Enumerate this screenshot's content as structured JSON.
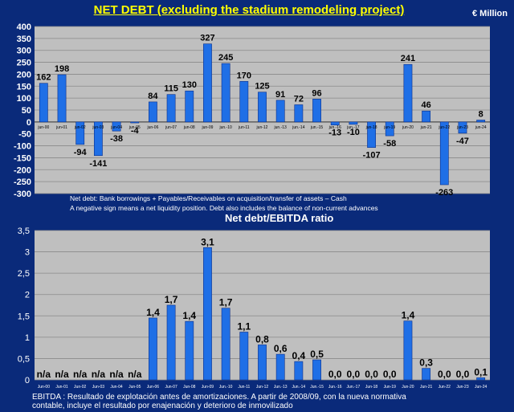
{
  "header": {
    "title": "NET DEBT (excluding the stadium remodeling project)",
    "unit": "€ Million"
  },
  "notes": {
    "line1": "Net debt: Bank borrowings + Payables/Receivables on acquisition/transfer of assets – Cash",
    "line2": "A negative sign means a net liquidity position. Debt also includes the balance of non-current advances"
  },
  "footer": {
    "line1": "EBITDA : Resultado de explotación antes de amortizaciones. A partir de 2008/09, con la nueva normativa",
    "line2": "contable, incluye el resultado por enajenación y deterioro de inmovilizado"
  },
  "colors": {
    "background": "#0a2a7a",
    "plot": "#bfbfbf",
    "bar": "#1f6fe6",
    "title": "#ffff00"
  },
  "chart_data": [
    {
      "type": "bar",
      "title": "NET DEBT (excluding the stadium remodeling project)",
      "unit": "€ Million",
      "categories": [
        "jun-00",
        "jun-01",
        "jun-02",
        "jun-03",
        "jun-04",
        "jun-05",
        "jun-06",
        "jun-07",
        "jun-08",
        "jun-09",
        "jun.-10",
        "jun-11",
        "jun-12",
        "jun.-13",
        "jun.-14",
        "jun.-15",
        "jun.-16",
        "jun.-17",
        "jun-18",
        "jun-19",
        "jun-20",
        "jun-21",
        "jun-22",
        "jun-23",
        "jun-24"
      ],
      "values": [
        162,
        198,
        -94,
        -141,
        -38,
        -4,
        84,
        115,
        130,
        327,
        245,
        170,
        125,
        91,
        72,
        96,
        -13,
        -10,
        -107,
        -58,
        241,
        46,
        -263,
        -47,
        8
      ],
      "ylim": [
        -300,
        400
      ],
      "yticks": [
        "400",
        "350",
        "300",
        "250",
        "200",
        "150",
        "100",
        "50",
        "0",
        "-50",
        "-100",
        "-150",
        "-200",
        "-250",
        "-300"
      ],
      "grid": true
    },
    {
      "type": "bar",
      "title": "Net debt/EBITDA ratio",
      "categories": [
        "Jun-00",
        "Jun-01",
        "Jun-02",
        "Jun-03",
        "Jun-04",
        "Jun-05",
        "Jun-06",
        "Jun-07",
        "Jun-08",
        "Jun-09",
        "Jun.-10",
        "Jun-11",
        "Jun-12",
        "Jun.-13",
        "Jun.-14",
        "Jun.-15",
        "Jun.-16",
        "Jun.-17",
        "Jun-18",
        "Jun-19",
        "Jun-20",
        "Jun-21",
        "Jun-22",
        "Jun-23",
        "Jun-24"
      ],
      "values": [
        0,
        0,
        0,
        0,
        0,
        0,
        1.45,
        1.75,
        1.37,
        3.1,
        1.68,
        1.12,
        0.82,
        0.6,
        0.43,
        0.47,
        0,
        0,
        0,
        0,
        1.38,
        0.27,
        0,
        0,
        0.05
      ],
      "labels": [
        "n/a",
        "n/a",
        "n/a",
        "n/a",
        "n/a",
        "n/a",
        "1,4",
        "1,7",
        "1,4",
        "3,1",
        "1,7",
        "1,1",
        "0,8",
        "0,6",
        "0,4",
        "0,5",
        "0,0",
        "0,0",
        "0,0",
        "0,0",
        "1,4",
        "0,3",
        "0,0",
        "0,0",
        "0,1"
      ],
      "ylim": [
        0,
        3.5
      ],
      "yticks": [
        "3,5",
        "3",
        "2,5",
        "2",
        "1,5",
        "1",
        "0,5",
        "0"
      ],
      "grid": true
    }
  ]
}
